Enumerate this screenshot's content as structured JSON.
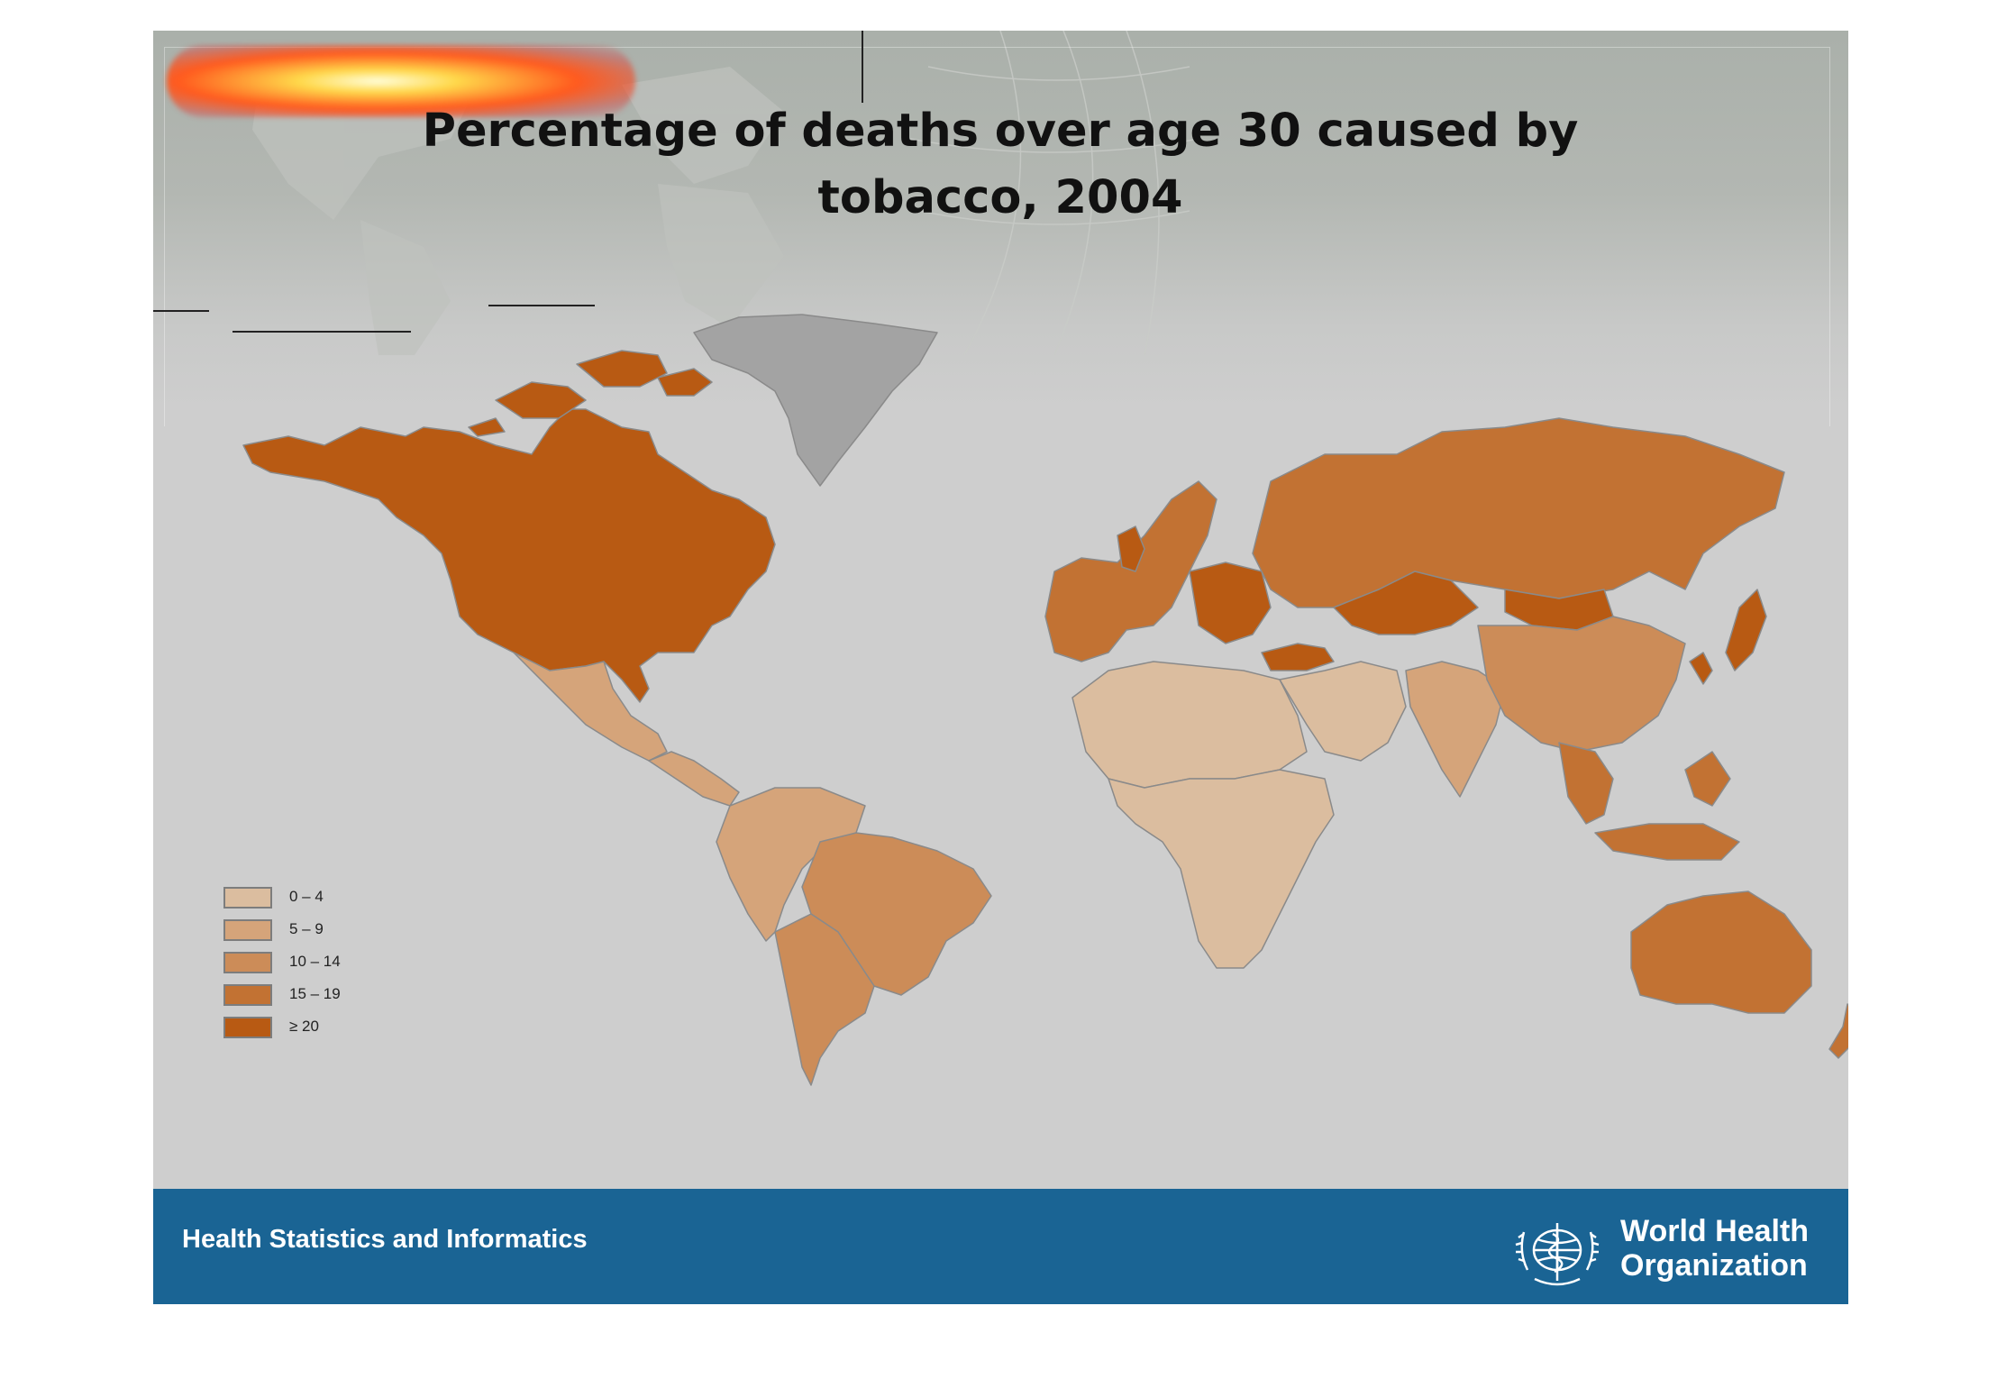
{
  "title": "Percentage of deaths over age 30 caused by tobacco, 2004",
  "legend": {
    "items": [
      {
        "label": "0 – 4",
        "color": "#dbbd9f"
      },
      {
        "label": "5 – 9",
        "color": "#d5a47a"
      },
      {
        "label": "10 – 14",
        "color": "#cc8c58"
      },
      {
        "label": "15 – 19",
        "color": "#c27233"
      },
      {
        "label": "≥ 20",
        "color": "#b85a13"
      }
    ],
    "no_data_color": "#a3a3a3"
  },
  "regions": {
    "north_america": "≥ 20",
    "greenland": "no data",
    "mexico": "5 – 9",
    "central_america": "5 – 9",
    "south_america_north": "5 – 9",
    "brazil": "10 – 14",
    "southern_cone": "10 – 14",
    "western_europe": "15 – 19",
    "eastern_europe": "≥ 20",
    "russia": "15 – 19",
    "kazakhstan_mongolia": "≥ 20",
    "turkey": "≥ 20",
    "north_africa": "0 – 4",
    "sub_saharan_africa": "0 – 4",
    "middle_east": "0 – 4",
    "south_asia": "5 – 9",
    "china": "10 – 14",
    "southeast_asia": "15 – 19",
    "japan_korea": "≥ 20",
    "australia": "15 – 19",
    "new_zealand": "15 – 19"
  },
  "footer": {
    "left_text": "Health Statistics and Informatics",
    "org_line1": "World Health",
    "org_line2": "Organization"
  }
}
